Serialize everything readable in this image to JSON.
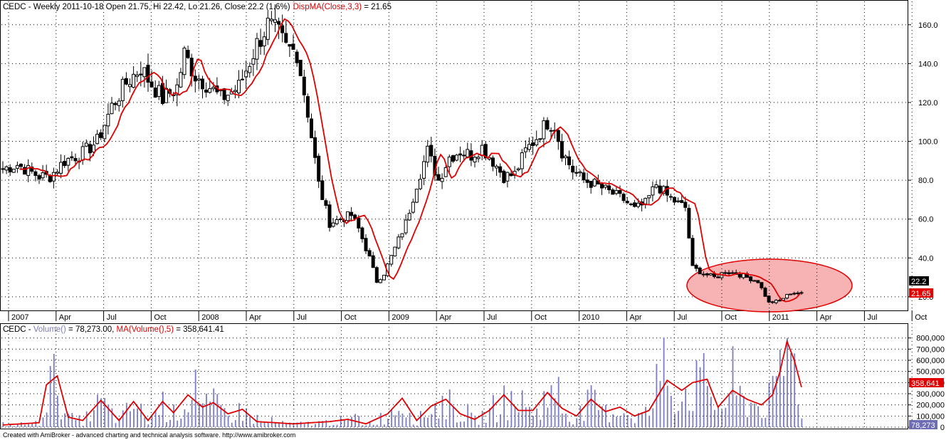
{
  "price_panel": {
    "title_prefix": "CEDC - Weekly 2011-10-18 Open 21.75, Hi 22.42, Lo 21.26, Close 22.2 (1.6%)",
    "indicator_label": "DispMA(Close,3,3)",
    "indicator_value": " = 21.65",
    "last_close_badge": "22.2",
    "last_ma_badge": "21.65"
  },
  "volume_panel": {
    "title_prefix": "CEDC - ",
    "volume_label": "Volume()",
    "volume_value": " = 78,273.00, ",
    "ma_label": "MA(Volume(),5)",
    "ma_value": " = 358,641.41",
    "last_volume_badge": "78,273",
    "last_ma_badge": "358,641"
  },
  "footer": {
    "credit": "Created with AmiBroker - advanced charting and technical analysis software. http://www.amibroker.com"
  },
  "colors": {
    "candle": "#000000",
    "ma_line": "#e00000",
    "volume_bar": "#7c7cc0",
    "highlight_fill": "#f7b3b3",
    "highlight_stroke": "#e00000",
    "grid": "#000000"
  },
  "chart_data": [
    {
      "type": "candlestick",
      "name": "price",
      "y_ticks": [
        "20.0",
        "40.0",
        "60.0",
        "80.0",
        "100.0",
        "120.0",
        "140.0",
        "160.0"
      ],
      "ylim": [
        13,
        172
      ],
      "x_ticks": [
        "2007",
        "Apr",
        "Jul",
        "Oct",
        "2008",
        "Apr",
        "Jul",
        "Oct",
        "2009",
        "Apr",
        "Jul",
        "Oct",
        "2010",
        "Apr",
        "Jul",
        "Oct",
        "2011",
        "Apr",
        "Jul",
        "Oct"
      ],
      "weeks_total": 251,
      "close_keypoints": [
        [
          0,
          86
        ],
        [
          4,
          88
        ],
        [
          8,
          84
        ],
        [
          10,
          82
        ],
        [
          13,
          82
        ],
        [
          17,
          90
        ],
        [
          22,
          94
        ],
        [
          26,
          100
        ],
        [
          30,
          118
        ],
        [
          34,
          130
        ],
        [
          38,
          138
        ],
        [
          40,
          132
        ],
        [
          44,
          122
        ],
        [
          48,
          128
        ],
        [
          50,
          145
        ],
        [
          53,
          134
        ],
        [
          56,
          130
        ],
        [
          60,
          122
        ],
        [
          65,
          128
        ],
        [
          70,
          150
        ],
        [
          73,
          160
        ],
        [
          76,
          155
        ],
        [
          78,
          148
        ],
        [
          81,
          146
        ],
        [
          84,
          115
        ],
        [
          87,
          78
        ],
        [
          90,
          58
        ],
        [
          93,
          60
        ],
        [
          96,
          62
        ],
        [
          98,
          55
        ],
        [
          101,
          40
        ],
        [
          103,
          28
        ],
        [
          105,
          32
        ],
        [
          108,
          45
        ],
        [
          111,
          58
        ],
        [
          114,
          78
        ],
        [
          117,
          95
        ],
        [
          120,
          80
        ],
        [
          123,
          92
        ],
        [
          126,
          95
        ],
        [
          129,
          93
        ],
        [
          132,
          97
        ],
        [
          135,
          90
        ],
        [
          138,
          82
        ],
        [
          141,
          83
        ],
        [
          144,
          95
        ],
        [
          147,
          102
        ],
        [
          150,
          110
        ],
        [
          152,
          108
        ],
        [
          154,
          95
        ],
        [
          157,
          85
        ],
        [
          160,
          80
        ],
        [
          163,
          78
        ],
        [
          166,
          75
        ],
        [
          168,
          73
        ],
        [
          171,
          70
        ],
        [
          174,
          65
        ],
        [
          177,
          68
        ],
        [
          180,
          78
        ],
        [
          183,
          72
        ],
        [
          186,
          68
        ],
        [
          188,
          66
        ],
        [
          190,
          35
        ],
        [
          193,
          32
        ],
        [
          196,
          30
        ],
        [
          199,
          33
        ],
        [
          202,
          32
        ],
        [
          205,
          30
        ],
        [
          208,
          28
        ],
        [
          211,
          17
        ],
        [
          214,
          18
        ],
        [
          217,
          22
        ],
        [
          220,
          22.2
        ]
      ],
      "last_close": 22.2,
      "last_ma": 21.65
    },
    {
      "type": "bar",
      "name": "volume",
      "y_ticks": [
        "0",
        "100,000",
        "200,000",
        "300,000",
        "400,000",
        "500,000",
        "600,000",
        "700,000",
        "800,000"
      ],
      "ylim": [
        0,
        830000
      ],
      "ma_keypoints": [
        [
          0,
          20000
        ],
        [
          10,
          40000
        ],
        [
          12,
          380000
        ],
        [
          15,
          460000
        ],
        [
          18,
          90000
        ],
        [
          22,
          60000
        ],
        [
          27,
          240000
        ],
        [
          32,
          60000
        ],
        [
          36,
          230000
        ],
        [
          40,
          60000
        ],
        [
          44,
          230000
        ],
        [
          47,
          130000
        ],
        [
          51,
          290000
        ],
        [
          55,
          180000
        ],
        [
          58,
          220000
        ],
        [
          62,
          120000
        ],
        [
          66,
          160000
        ],
        [
          70,
          50000
        ],
        [
          80,
          30000
        ],
        [
          90,
          50000
        ],
        [
          95,
          70000
        ],
        [
          100,
          30000
        ],
        [
          106,
          120000
        ],
        [
          110,
          260000
        ],
        [
          114,
          60000
        ],
        [
          118,
          190000
        ],
        [
          122,
          250000
        ],
        [
          126,
          120000
        ],
        [
          130,
          70000
        ],
        [
          134,
          150000
        ],
        [
          138,
          290000
        ],
        [
          142,
          150000
        ],
        [
          146,
          150000
        ],
        [
          150,
          310000
        ],
        [
          154,
          170000
        ],
        [
          158,
          100000
        ],
        [
          162,
          250000
        ],
        [
          166,
          140000
        ],
        [
          170,
          180000
        ],
        [
          174,
          100000
        ],
        [
          178,
          150000
        ],
        [
          183,
          420000
        ],
        [
          187,
          330000
        ],
        [
          190,
          400000
        ],
        [
          194,
          430000
        ],
        [
          197,
          180000
        ],
        [
          201,
          330000
        ],
        [
          205,
          250000
        ],
        [
          209,
          200000
        ],
        [
          212,
          290000
        ],
        [
          214,
          490000
        ],
        [
          216,
          770000
        ],
        [
          218,
          600000
        ],
        [
          220,
          358641
        ]
      ],
      "last_volume": 78273,
      "last_ma": 358641
    }
  ]
}
